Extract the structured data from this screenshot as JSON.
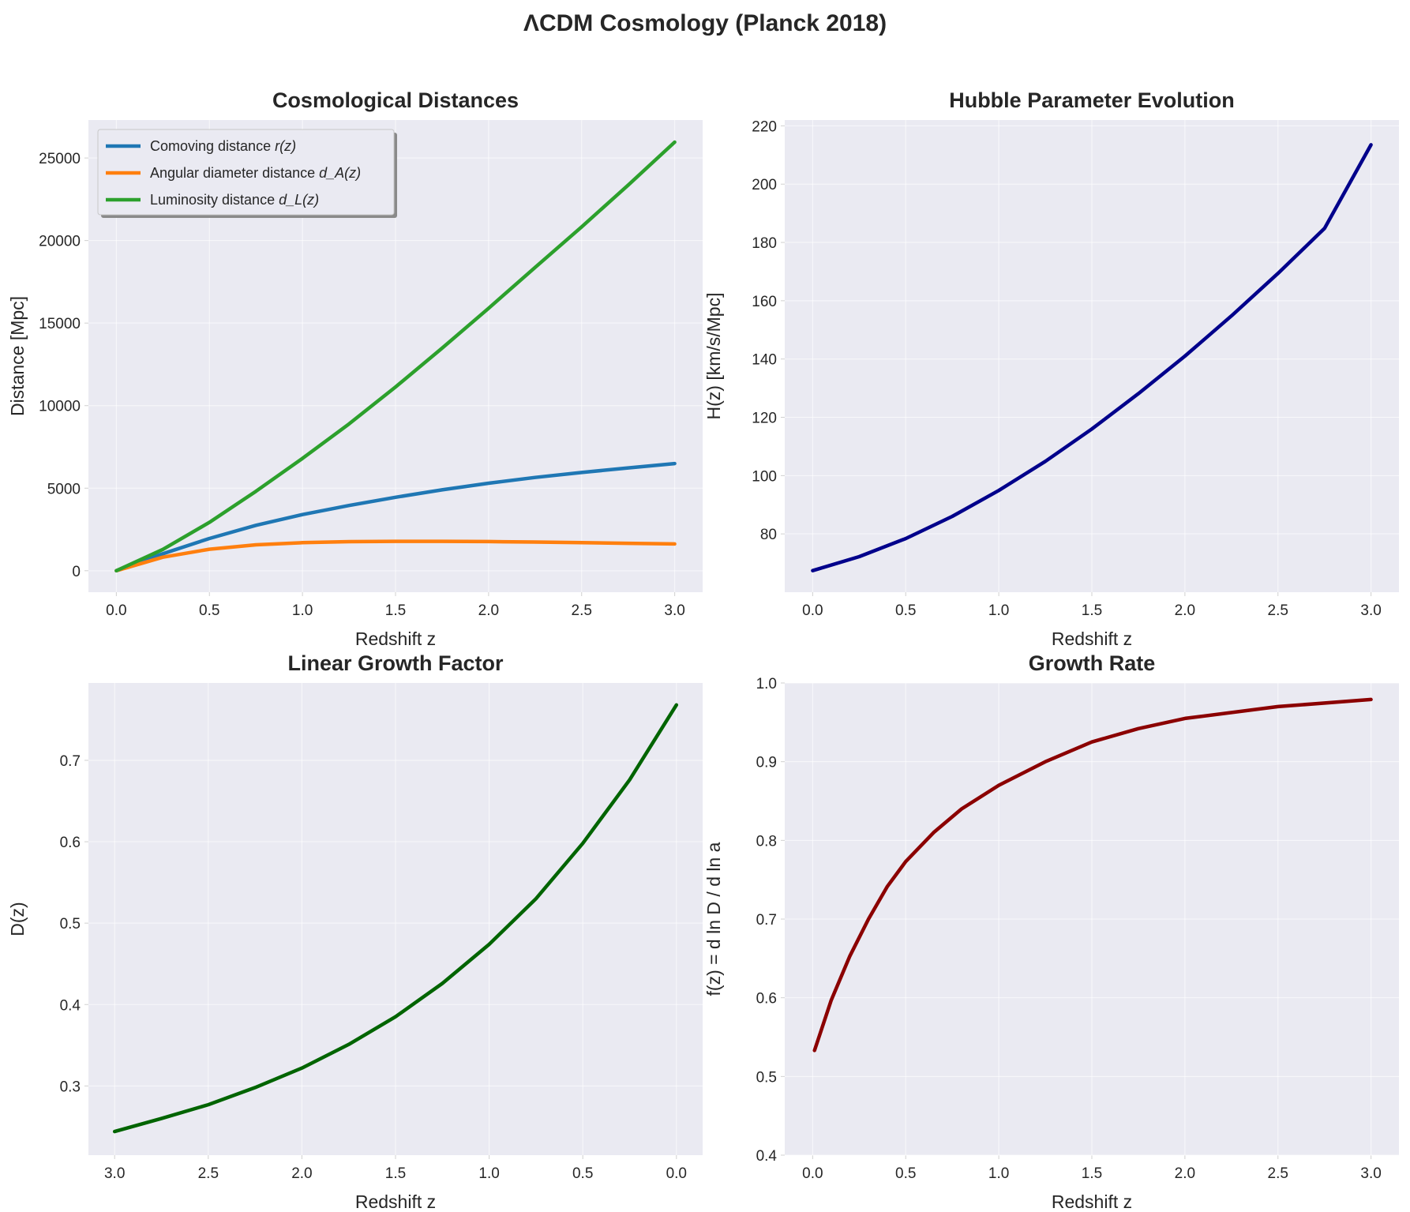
{
  "figure_title": "ΛCDM Cosmology (Planck 2018)",
  "colors": {
    "panel_bg": "#eaeaf2",
    "grid": "#ffffff",
    "text": "#262626"
  },
  "chart_data": [
    {
      "id": "distances",
      "type": "line",
      "title": "Cosmological Distances",
      "xlabel": "Redshift z",
      "ylabel": "Distance [Mpc]",
      "xlim": [
        -0.15,
        3.15
      ],
      "ylim": [
        -1300,
        27300
      ],
      "xticks": [
        0,
        0.5,
        1.0,
        1.5,
        2.0,
        2.5,
        3.0
      ],
      "xtick_labels": [
        "0.0",
        "0.5",
        "1.0",
        "1.5",
        "2.0",
        "2.5",
        "3.0"
      ],
      "yticks": [
        0,
        5000,
        10000,
        15000,
        20000,
        25000
      ],
      "ytick_labels": [
        "0",
        "5000",
        "10000",
        "15000",
        "20000",
        "25000"
      ],
      "legend_position": "top-left",
      "x": [
        0.0,
        0.25,
        0.5,
        0.75,
        1.0,
        1.25,
        1.5,
        1.75,
        2.0,
        2.25,
        2.5,
        2.75,
        3.0
      ],
      "series": [
        {
          "name": "Comoving distance r(z)",
          "legend_main": "Comoving distance ",
          "legend_var": "r(z)",
          "color": "#1f77b4",
          "values": [
            0,
            1030,
            1950,
            2750,
            3400,
            3950,
            4450,
            4900,
            5300,
            5650,
            5950,
            6230,
            6490
          ]
        },
        {
          "name": "Angular diameter distance d_A(z)",
          "legend_main": "Angular diameter distance ",
          "legend_var": "d_A(z)",
          "color": "#ff7f0e",
          "values": [
            0,
            820,
            1300,
            1570,
            1700,
            1760,
            1780,
            1780,
            1765,
            1735,
            1700,
            1660,
            1620
          ]
        },
        {
          "name": "Luminosity distance d_L(z)",
          "legend_main": "Luminosity distance ",
          "legend_var": "d_L(z)",
          "color": "#2ca02c",
          "values": [
            0,
            1290,
            2930,
            4810,
            6800,
            8890,
            11130,
            13480,
            15900,
            18370,
            20830,
            23360,
            25960
          ]
        }
      ]
    },
    {
      "id": "hubble",
      "type": "line",
      "title": "Hubble Parameter Evolution",
      "xlabel": "Redshift z",
      "ylabel": "H(z) [km/s/Mpc]",
      "xlim": [
        -0.15,
        3.15
      ],
      "ylim": [
        60,
        222
      ],
      "xticks": [
        0,
        0.5,
        1.0,
        1.5,
        2.0,
        2.5,
        3.0
      ],
      "xtick_labels": [
        "0.0",
        "0.5",
        "1.0",
        "1.5",
        "2.0",
        "2.5",
        "3.0"
      ],
      "yticks": [
        80,
        100,
        120,
        140,
        160,
        180,
        200,
        220
      ],
      "ytick_labels": [
        "80",
        "100",
        "120",
        "140",
        "160",
        "180",
        "200",
        "220"
      ],
      "x": [
        0.0,
        0.25,
        0.5,
        0.75,
        1.0,
        1.25,
        1.5,
        1.75,
        2.0,
        2.25,
        2.5,
        2.75,
        3.0
      ],
      "series": [
        {
          "name": "H(z)",
          "color": "#00008b",
          "values": [
            67.4,
            72.2,
            78.4,
            86.0,
            94.9,
            104.9,
            116.0,
            128.1,
            141.0,
            154.8,
            169.4,
            184.8,
            213.5
          ]
        }
      ]
    },
    {
      "id": "growth_factor",
      "type": "line",
      "title": "Linear Growth Factor",
      "xlabel": "Redshift z",
      "ylabel": "D(z)",
      "xlim": [
        3.14,
        -0.14
      ],
      "ylim": [
        0.215,
        0.795
      ],
      "xticks": [
        3.0,
        2.5,
        2.0,
        1.5,
        1.0,
        0.5,
        0.0
      ],
      "xtick_labels": [
        "3.0",
        "2.5",
        "2.0",
        "1.5",
        "1.0",
        "0.5",
        "0.0"
      ],
      "yticks": [
        0.3,
        0.4,
        0.5,
        0.6,
        0.7
      ],
      "ytick_labels": [
        "0.3",
        "0.4",
        "0.5",
        "0.6",
        "0.7"
      ],
      "x": [
        3.0,
        2.75,
        2.5,
        2.25,
        2.0,
        1.75,
        1.5,
        1.25,
        1.0,
        0.75,
        0.5,
        0.25,
        0.0
      ],
      "series": [
        {
          "name": "D(z)",
          "color": "#006400",
          "values": [
            0.244,
            0.26,
            0.277,
            0.298,
            0.322,
            0.351,
            0.385,
            0.426,
            0.474,
            0.53,
            0.598,
            0.676,
            0.768
          ]
        }
      ]
    },
    {
      "id": "growth_rate",
      "type": "line",
      "title": "Growth Rate",
      "xlabel": "Redshift z",
      "ylabel": "f(z) = d ln D / d ln a",
      "xlim": [
        -0.15,
        3.15
      ],
      "ylim": [
        0.4,
        1.0
      ],
      "xticks": [
        0,
        0.5,
        1.0,
        1.5,
        2.0,
        2.5,
        3.0
      ],
      "xtick_labels": [
        "0.0",
        "0.5",
        "1.0",
        "1.5",
        "2.0",
        "2.5",
        "3.0"
      ],
      "yticks": [
        0.4,
        0.5,
        0.6,
        0.7,
        0.8,
        0.9,
        1.0
      ],
      "ytick_labels": [
        "0.4",
        "0.5",
        "0.6",
        "0.7",
        "0.8",
        "0.9",
        "1.0"
      ],
      "x": [
        0.01,
        0.1,
        0.2,
        0.3,
        0.4,
        0.5,
        0.65,
        0.8,
        1.0,
        1.25,
        1.5,
        1.75,
        2.0,
        2.5,
        3.0
      ],
      "series": [
        {
          "name": "f(z)",
          "color": "#8b0000",
          "values": [
            0.533,
            0.597,
            0.653,
            0.7,
            0.741,
            0.773,
            0.81,
            0.84,
            0.87,
            0.9,
            0.925,
            0.942,
            0.955,
            0.97,
            0.979
          ]
        }
      ]
    }
  ]
}
